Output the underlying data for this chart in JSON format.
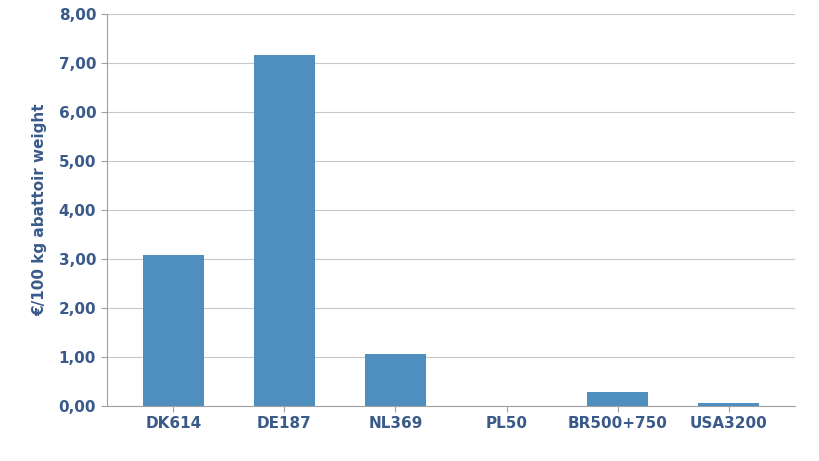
{
  "categories": [
    "DK614",
    "DE187",
    "NL369",
    "PL50",
    "BR500+750",
    "USA3200"
  ],
  "values": [
    3.07,
    7.15,
    1.05,
    0.0,
    0.27,
    0.06
  ],
  "bar_color": "#4f8fc0",
  "ylabel": "€/100 kg abattoir weight",
  "ylim": [
    0,
    8.0
  ],
  "yticks": [
    0.0,
    1.0,
    2.0,
    3.0,
    4.0,
    5.0,
    6.0,
    7.0,
    8.0
  ],
  "ytick_labels": [
    "0,00",
    "1,00",
    "2,00",
    "3,00",
    "4,00",
    "5,00",
    "6,00",
    "7,00",
    "8,00"
  ],
  "background_color": "#ffffff",
  "grid_color": "#c8c8c8",
  "bar_width": 0.55,
  "tick_color": "#3a5a8a",
  "label_fontsize": 11,
  "tick_fontsize": 11
}
